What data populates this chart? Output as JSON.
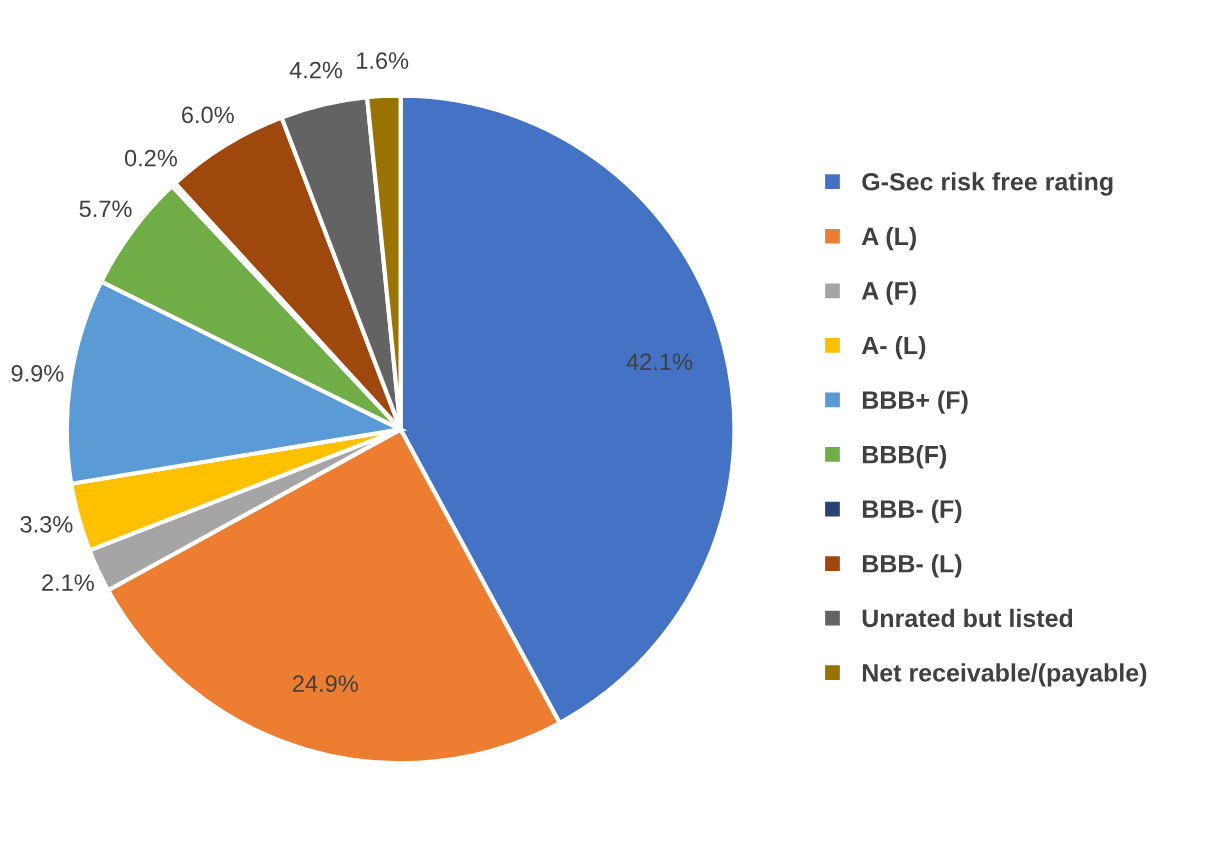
{
  "chart_data": {
    "type": "pie",
    "categories": [
      "G-Sec risk free rating",
      "A (L)",
      "A (F)",
      "A- (L)",
      "BBB+ (F)",
      "BBB(F)",
      "BBB- (F)",
      "BBB- (L)",
      "Unrated but listed",
      "Net receivable/(payable)"
    ],
    "values": [
      42.1,
      24.9,
      2.1,
      3.3,
      9.9,
      5.7,
      0.2,
      6.0,
      4.2,
      1.6
    ],
    "colors": [
      "#4472c4",
      "#ed7d31",
      "#a5a5a5",
      "#ffc000",
      "#5b9bd5",
      "#70ad47",
      "#264478",
      "#9e480e",
      "#636363",
      "#997300"
    ],
    "value_labels": [
      "42.1%",
      "24.9%",
      "2.1%",
      "3.3%",
      "9.9%",
      "5.7%",
      "0.2%",
      "6.0%",
      "4.2%",
      "1.6%"
    ],
    "legend": "right"
  }
}
